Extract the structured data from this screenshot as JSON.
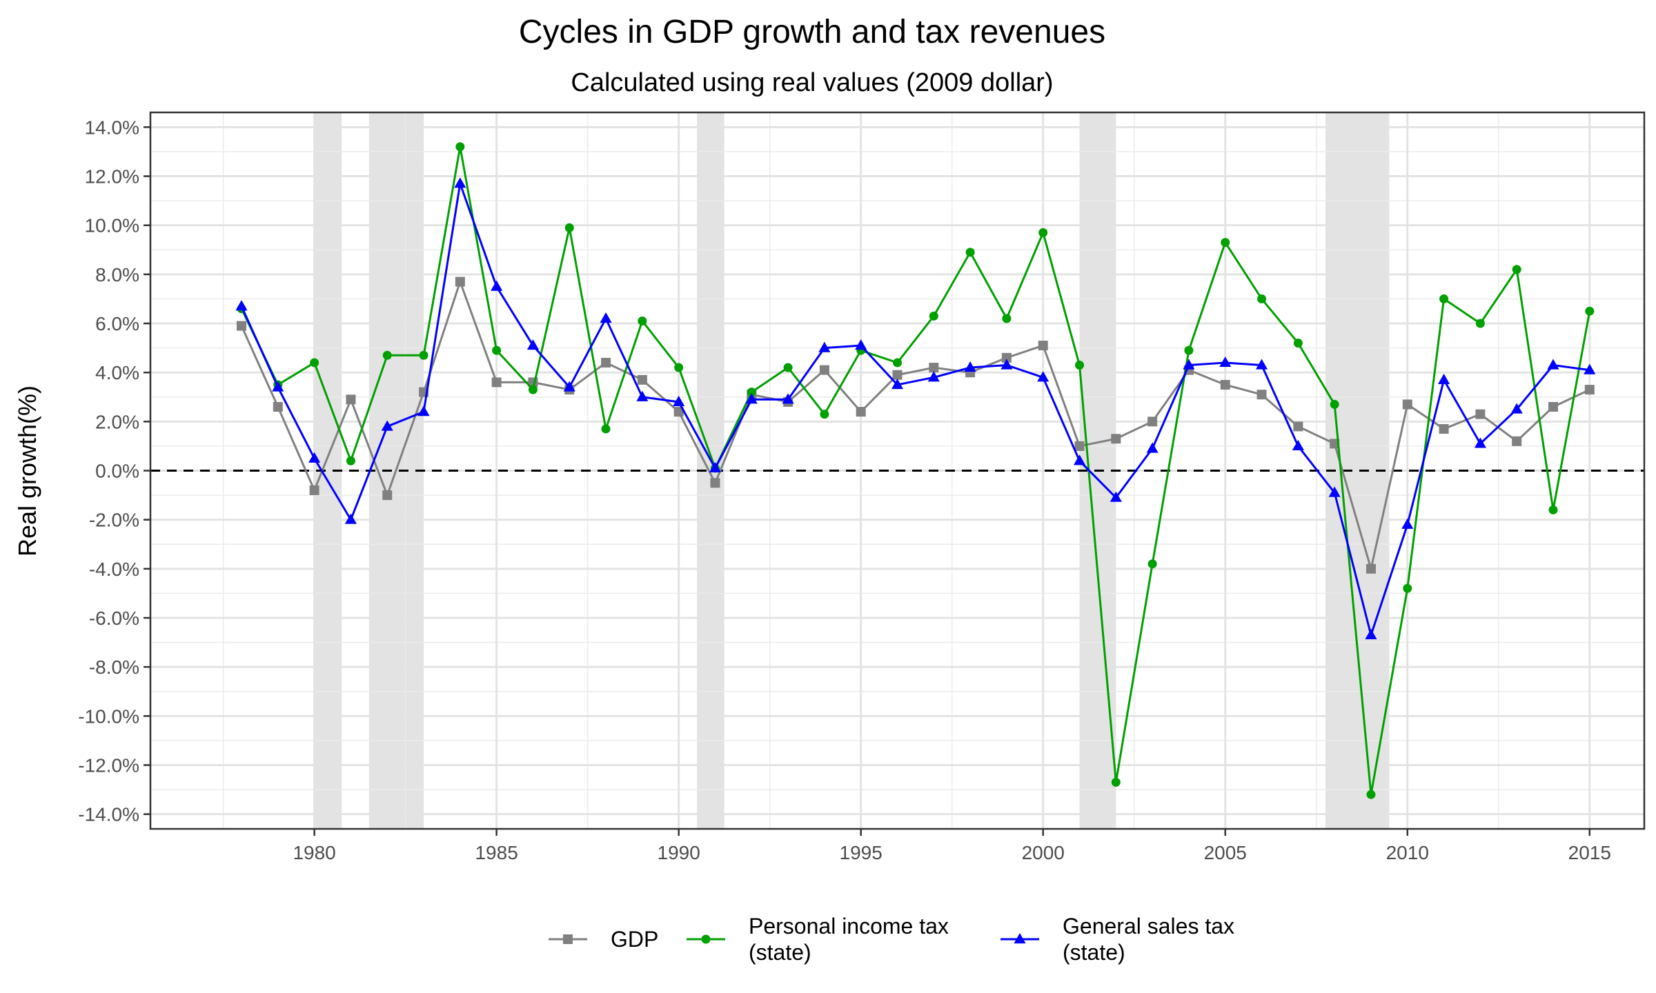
{
  "chart_data": {
    "type": "line",
    "title": "Cycles in GDP growth and tax revenues",
    "subtitle": "Calculated using real values (2009 dollar)",
    "xlabel": "",
    "ylabel": "Real growth(%)",
    "xlim": [
      1975.5,
      2016.5
    ],
    "ylim": [
      -14.6,
      14.6
    ],
    "x_ticks": [
      1980,
      1985,
      1990,
      1995,
      2000,
      2005,
      2010,
      2015
    ],
    "x_tick_labels": [
      "1980",
      "1985",
      "1990",
      "1995",
      "2000",
      "2005",
      "2010",
      "2015"
    ],
    "y_ticks": [
      -14,
      -12,
      -10,
      -8,
      -6,
      -4,
      -2,
      0,
      2,
      4,
      6,
      8,
      10,
      12,
      14
    ],
    "y_tick_labels": [
      "-14.0%",
      "-12.0%",
      "-10.0%",
      "-8.0%",
      "-6.0%",
      "-4.0%",
      "-2.0%",
      "0.0%",
      "2.0%",
      "4.0%",
      "6.0%",
      "8.0%",
      "10.0%",
      "12.0%",
      "14.0%"
    ],
    "grid": true,
    "reference_line": {
      "y": 0,
      "style": "dashed"
    },
    "recessions": [
      [
        1980.0,
        1980.75
      ],
      [
        1981.5,
        1983.0
      ],
      [
        1990.5,
        1991.25
      ],
      [
        2001.0,
        2002.0
      ],
      [
        2007.75,
        2009.5
      ]
    ],
    "legend_position": "bottom",
    "x": [
      1978,
      1979,
      1980,
      1981,
      1982,
      1983,
      1984,
      1985,
      1986,
      1987,
      1988,
      1989,
      1990,
      1991,
      1992,
      1993,
      1994,
      1995,
      1996,
      1997,
      1998,
      1999,
      2000,
      2001,
      2002,
      2003,
      2004,
      2005,
      2006,
      2007,
      2008,
      2009,
      2010,
      2011,
      2012,
      2013,
      2014,
      2015
    ],
    "series": [
      {
        "name": "GDP",
        "color": "#808080",
        "marker": "square",
        "values": [
          5.9,
          2.6,
          -0.8,
          2.9,
          -1.0,
          3.2,
          7.7,
          3.6,
          3.6,
          3.3,
          4.4,
          3.7,
          2.4,
          -0.5,
          3.1,
          2.8,
          4.1,
          2.4,
          3.9,
          4.2,
          4.0,
          4.6,
          5.1,
          1.0,
          1.3,
          2.0,
          4.1,
          3.5,
          3.1,
          1.8,
          1.1,
          -4.0,
          2.7,
          1.7,
          2.3,
          1.2,
          2.6,
          3.3
        ]
      },
      {
        "name": "Personal income tax\n(state)",
        "color": "#00a000",
        "marker": "circle",
        "values": [
          6.6,
          3.5,
          4.4,
          0.4,
          4.7,
          4.7,
          13.2,
          4.9,
          3.3,
          9.9,
          1.7,
          6.1,
          4.2,
          0.1,
          3.2,
          4.2,
          2.3,
          4.9,
          4.4,
          6.3,
          8.9,
          6.2,
          9.7,
          4.3,
          -12.7,
          -3.8,
          4.9,
          9.3,
          7.0,
          5.2,
          2.7,
          -13.2,
          -4.8,
          7.0,
          6.0,
          8.2,
          -1.6,
          6.5
        ]
      },
      {
        "name": "General sales tax\n(state)",
        "color": "#0000ff",
        "marker": "triangle",
        "values": [
          6.7,
          3.4,
          0.5,
          -2.0,
          1.8,
          2.4,
          11.7,
          7.5,
          5.1,
          3.4,
          6.2,
          3.0,
          2.8,
          0.1,
          2.9,
          2.9,
          5.0,
          5.1,
          3.5,
          3.8,
          4.2,
          4.3,
          3.8,
          0.4,
          -1.1,
          0.9,
          4.3,
          4.4,
          4.3,
          1.0,
          -0.9,
          -6.7,
          -2.2,
          3.7,
          1.1,
          2.5,
          4.3,
          4.1
        ]
      }
    ]
  }
}
